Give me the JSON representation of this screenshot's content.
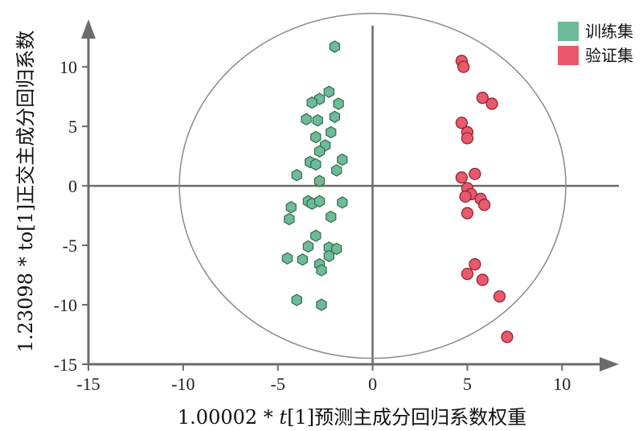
{
  "chart_data": {
    "type": "scatter",
    "xlabel_prefix": "1.00002 * ",
    "xlabel_italic": "t",
    "xlabel_suffix": "[1]预测主成分回归系数权重",
    "ylabel": "1.23098 * to[1]正交主成分回归系数",
    "xlim": [
      -15,
      13
    ],
    "ylim": [
      -15,
      14
    ],
    "xticks": [
      -15,
      -10,
      -5,
      0,
      5,
      10
    ],
    "yticks": [
      -15,
      -10,
      -5,
      0,
      5,
      10
    ],
    "ellipse": {
      "rx": 10.2,
      "ry": 14.5
    },
    "legend_position": "top-right",
    "series": [
      {
        "name": "训练集",
        "color": "#6dbb98",
        "marker": "hexagon",
        "points": [
          [
            -2.0,
            11.7
          ],
          [
            -2.3,
            7.9
          ],
          [
            -2.8,
            7.3
          ],
          [
            -3.2,
            7.0
          ],
          [
            -1.8,
            6.9
          ],
          [
            -3.5,
            5.6
          ],
          [
            -2.9,
            5.5
          ],
          [
            -2.0,
            5.8
          ],
          [
            -2.2,
            4.5
          ],
          [
            -3.0,
            4.1
          ],
          [
            -2.5,
            3.4
          ],
          [
            -2.8,
            2.9
          ],
          [
            -3.3,
            2.0
          ],
          [
            -3.0,
            1.8
          ],
          [
            -1.6,
            2.2
          ],
          [
            -1.9,
            1.3
          ],
          [
            -4.0,
            0.9
          ],
          [
            -2.8,
            0.4
          ],
          [
            -3.4,
            -1.3
          ],
          [
            -4.3,
            -1.8
          ],
          [
            -3.2,
            -1.5
          ],
          [
            -2.8,
            -1.3
          ],
          [
            -1.6,
            -1.4
          ],
          [
            -4.4,
            -2.8
          ],
          [
            -2.2,
            -2.6
          ],
          [
            -3.0,
            -4.2
          ],
          [
            -3.4,
            -5.1
          ],
          [
            -2.3,
            -5.2
          ],
          [
            -1.9,
            -5.3
          ],
          [
            -2.3,
            -5.9
          ],
          [
            -4.5,
            -6.1
          ],
          [
            -3.7,
            -6.2
          ],
          [
            -2.8,
            -6.6
          ],
          [
            -2.7,
            -7.1
          ],
          [
            -4.0,
            -9.6
          ],
          [
            -2.7,
            -10.0
          ]
        ]
      },
      {
        "name": "验证集",
        "color": "#e8596c",
        "marker": "circle",
        "points": [
          [
            4.7,
            10.5
          ],
          [
            4.8,
            10.0
          ],
          [
            5.8,
            7.4
          ],
          [
            6.3,
            6.9
          ],
          [
            4.7,
            5.3
          ],
          [
            5.0,
            4.5
          ],
          [
            5.0,
            4.0
          ],
          [
            5.4,
            1.0
          ],
          [
            4.7,
            0.7
          ],
          [
            5.0,
            -0.2
          ],
          [
            5.2,
            -0.7
          ],
          [
            4.9,
            -0.9
          ],
          [
            5.7,
            -1.1
          ],
          [
            5.9,
            -1.6
          ],
          [
            5.0,
            -2.3
          ],
          [
            5.4,
            -6.6
          ],
          [
            5.0,
            -7.4
          ],
          [
            5.8,
            -7.9
          ],
          [
            6.7,
            -9.3
          ],
          [
            7.1,
            -12.7
          ]
        ]
      }
    ]
  }
}
